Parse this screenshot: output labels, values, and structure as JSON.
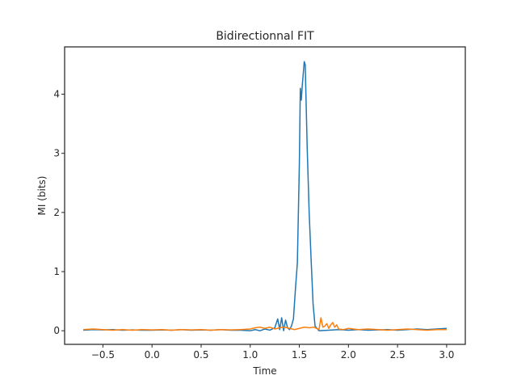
{
  "chart_data": {
    "type": "line",
    "title": "Bidirectionnal FIT",
    "xlabel": "Time",
    "ylabel": "MI (bits)",
    "xlim": [
      -0.89,
      3.19
    ],
    "ylim": [
      -0.23,
      4.8
    ],
    "xticks": [
      -0.5,
      0.0,
      0.5,
      1.0,
      1.5,
      2.0,
      2.5,
      3.0
    ],
    "xtick_labels": [
      "−0.5",
      "0.0",
      "0.5",
      "1.0",
      "1.5",
      "2.0",
      "2.5",
      "3.0"
    ],
    "yticks": [
      0,
      1,
      2,
      3,
      4
    ],
    "ytick_labels": [
      "0",
      "1",
      "2",
      "3",
      "4"
    ],
    "grid": false,
    "legend": "none",
    "series": [
      {
        "color": "#1f77b4",
        "points": [
          [
            -0.7,
            0.01
          ],
          [
            -0.6,
            0.02
          ],
          [
            -0.5,
            0.015
          ],
          [
            -0.4,
            0.02
          ],
          [
            -0.3,
            0.01
          ],
          [
            -0.2,
            0.015
          ],
          [
            -0.1,
            0.01
          ],
          [
            0.0,
            0.01
          ],
          [
            0.1,
            0.015
          ],
          [
            0.2,
            0.01
          ],
          [
            0.3,
            0.02
          ],
          [
            0.4,
            0.01
          ],
          [
            0.5,
            0.015
          ],
          [
            0.6,
            0.01
          ],
          [
            0.7,
            0.02
          ],
          [
            0.8,
            0.01
          ],
          [
            0.9,
            0.01
          ],
          [
            1.0,
            0.0
          ],
          [
            1.05,
            0.02
          ],
          [
            1.1,
            0.0
          ],
          [
            1.15,
            0.03
          ],
          [
            1.2,
            0.01
          ],
          [
            1.25,
            0.05
          ],
          [
            1.28,
            0.2
          ],
          [
            1.3,
            0.02
          ],
          [
            1.32,
            0.22
          ],
          [
            1.34,
            0.0
          ],
          [
            1.36,
            0.18
          ],
          [
            1.38,
            0.05
          ],
          [
            1.4,
            0.02
          ],
          [
            1.42,
            0.08
          ],
          [
            1.44,
            0.2
          ],
          [
            1.46,
            0.7
          ],
          [
            1.48,
            1.15
          ],
          [
            1.5,
            2.8
          ],
          [
            1.51,
            4.1
          ],
          [
            1.52,
            3.9
          ],
          [
            1.53,
            4.15
          ],
          [
            1.55,
            4.55
          ],
          [
            1.56,
            4.5
          ],
          [
            1.57,
            3.8
          ],
          [
            1.58,
            3.1
          ],
          [
            1.6,
            2.0
          ],
          [
            1.62,
            1.2
          ],
          [
            1.64,
            0.45
          ],
          [
            1.66,
            0.08
          ],
          [
            1.7,
            0.0
          ],
          [
            1.8,
            0.01
          ],
          [
            1.9,
            0.02
          ],
          [
            2.0,
            0.01
          ],
          [
            2.1,
            0.02
          ],
          [
            2.2,
            0.01
          ],
          [
            2.3,
            0.015
          ],
          [
            2.4,
            0.02
          ],
          [
            2.5,
            0.01
          ],
          [
            2.6,
            0.02
          ],
          [
            2.7,
            0.03
          ],
          [
            2.8,
            0.02
          ],
          [
            2.9,
            0.03
          ],
          [
            3.0,
            0.04
          ]
        ]
      },
      {
        "color": "#ff7f0e",
        "points": [
          [
            -0.7,
            0.02
          ],
          [
            -0.6,
            0.03
          ],
          [
            -0.5,
            0.02
          ],
          [
            -0.4,
            0.01
          ],
          [
            -0.3,
            0.02
          ],
          [
            -0.2,
            0.01
          ],
          [
            -0.1,
            0.02
          ],
          [
            0.0,
            0.015
          ],
          [
            0.1,
            0.02
          ],
          [
            0.2,
            0.01
          ],
          [
            0.3,
            0.02
          ],
          [
            0.4,
            0.015
          ],
          [
            0.5,
            0.02
          ],
          [
            0.6,
            0.01
          ],
          [
            0.7,
            0.02
          ],
          [
            0.8,
            0.015
          ],
          [
            0.9,
            0.02
          ],
          [
            1.0,
            0.03
          ],
          [
            1.05,
            0.05
          ],
          [
            1.1,
            0.06
          ],
          [
            1.15,
            0.04
          ],
          [
            1.2,
            0.06
          ],
          [
            1.25,
            0.03
          ],
          [
            1.3,
            0.05
          ],
          [
            1.35,
            0.06
          ],
          [
            1.4,
            0.04
          ],
          [
            1.45,
            0.02
          ],
          [
            1.5,
            0.04
          ],
          [
            1.55,
            0.06
          ],
          [
            1.6,
            0.05
          ],
          [
            1.65,
            0.06
          ],
          [
            1.7,
            0.02
          ],
          [
            1.72,
            0.22
          ],
          [
            1.74,
            0.06
          ],
          [
            1.76,
            0.08
          ],
          [
            1.78,
            0.12
          ],
          [
            1.8,
            0.04
          ],
          [
            1.82,
            0.1
          ],
          [
            1.84,
            0.14
          ],
          [
            1.86,
            0.06
          ],
          [
            1.88,
            0.1
          ],
          [
            1.9,
            0.03
          ],
          [
            1.95,
            0.02
          ],
          [
            2.0,
            0.04
          ],
          [
            2.1,
            0.02
          ],
          [
            2.2,
            0.03
          ],
          [
            2.3,
            0.02
          ],
          [
            2.4,
            0.01
          ],
          [
            2.5,
            0.02
          ],
          [
            2.6,
            0.03
          ],
          [
            2.7,
            0.02
          ],
          [
            2.8,
            0.01
          ],
          [
            2.9,
            0.02
          ],
          [
            3.0,
            0.02
          ]
        ]
      }
    ]
  }
}
